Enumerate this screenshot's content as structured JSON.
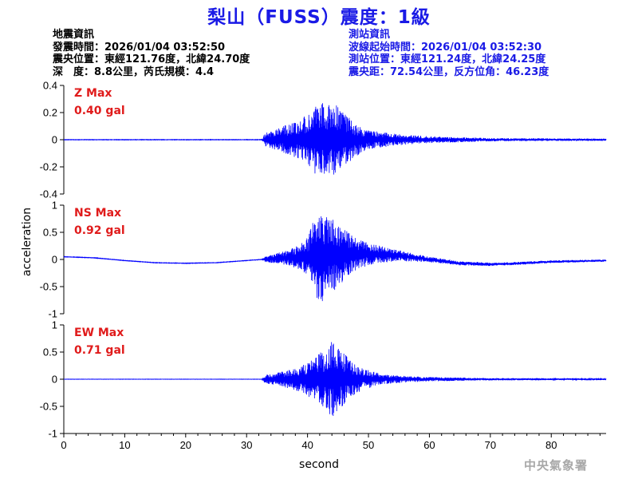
{
  "title": "梨山（FUSS）震度：1級",
  "earthquake_info": {
    "heading": "地震資訊",
    "origin_time": "發震時間：2026/01/04 03:52:50",
    "epicenter": "震央位置：東經121.76度，北緯24.70度",
    "depth_magnitude": "深　度：8.8公里，芮氏規模：4.4"
  },
  "station_info": {
    "heading": "測站資訊",
    "wave_start_time": "波線起始時間：2026/01/04 03:52:30",
    "station_location": "測站位置：東經121.24度，北緯24.25度",
    "distance_azimuth": "震央距：72.54公里，反方位角：46.23度"
  },
  "footer": "中央氣象署",
  "chart_data": {
    "type": "line",
    "xlabel": "second",
    "ylabel": "acceleration",
    "xlim": [
      0,
      89
    ],
    "x_ticks": [
      0,
      10,
      20,
      30,
      40,
      50,
      60,
      70,
      80
    ],
    "series_color": "#0000ff",
    "label_color": "#e01b1b",
    "panels": [
      {
        "component": "Z",
        "label": "Z Max",
        "max_value": "0.40 gal",
        "ylim": [
          -0.4,
          0.4
        ],
        "y_ticks": [
          -0.4,
          -0.2,
          0,
          0.2,
          0.4
        ],
        "y_tick_labels": [
          "-0.4",
          "-0.2",
          "0",
          "0.2",
          "0.4"
        ],
        "envelope": [
          [
            0,
            0.002
          ],
          [
            32.5,
            0.002
          ],
          [
            33,
            0.05
          ],
          [
            35,
            0.08
          ],
          [
            37,
            0.12
          ],
          [
            39,
            0.15
          ],
          [
            40.5,
            0.22
          ],
          [
            42,
            0.28
          ],
          [
            43,
            0.26
          ],
          [
            44.5,
            0.28
          ],
          [
            46,
            0.2
          ],
          [
            48,
            0.12
          ],
          [
            50,
            0.07
          ],
          [
            55,
            0.04
          ],
          [
            60,
            0.025
          ],
          [
            70,
            0.012
          ],
          [
            89,
            0.008
          ]
        ],
        "baseline": [
          [
            0,
            0
          ],
          [
            89,
            0
          ]
        ]
      },
      {
        "component": "NS",
        "label": "NS Max",
        "max_value": "0.92 gal",
        "ylim": [
          -1,
          1
        ],
        "y_ticks": [
          -1,
          -0.5,
          0,
          0.5,
          1
        ],
        "y_tick_labels": [
          "-1",
          "-0.5",
          "0",
          "0.5",
          "1"
        ],
        "envelope": [
          [
            0,
            0.005
          ],
          [
            32.5,
            0.005
          ],
          [
            33,
            0.05
          ],
          [
            36,
            0.12
          ],
          [
            38,
            0.2
          ],
          [
            40,
            0.35
          ],
          [
            41,
            0.7
          ],
          [
            42,
            0.9
          ],
          [
            43,
            0.75
          ],
          [
            45,
            0.6
          ],
          [
            46,
            0.5
          ],
          [
            48,
            0.3
          ],
          [
            50,
            0.2
          ],
          [
            55,
            0.1
          ],
          [
            60,
            0.05
          ],
          [
            70,
            0.03
          ],
          [
            89,
            0.02
          ]
        ],
        "baseline": [
          [
            0,
            0.05
          ],
          [
            5,
            0.03
          ],
          [
            10,
            -0.02
          ],
          [
            15,
            -0.06
          ],
          [
            20,
            -0.07
          ],
          [
            25,
            -0.06
          ],
          [
            30,
            -0.02
          ],
          [
            35,
            0.02
          ],
          [
            40,
            0.05
          ],
          [
            45,
            0.08
          ],
          [
            50,
            0.1
          ],
          [
            55,
            0.07
          ],
          [
            60,
            0.0
          ],
          [
            65,
            -0.07
          ],
          [
            70,
            -0.09
          ],
          [
            75,
            -0.07
          ],
          [
            80,
            -0.04
          ],
          [
            85,
            -0.03
          ],
          [
            89,
            -0.02
          ]
        ]
      },
      {
        "component": "EW",
        "label": "EW Max",
        "max_value": "0.71 gal",
        "ylim": [
          -1,
          1
        ],
        "y_ticks": [
          -1,
          -0.5,
          0,
          0.5,
          1
        ],
        "y_tick_labels": [
          "-1",
          "-0.5",
          "0",
          "0.5",
          "1"
        ],
        "envelope": [
          [
            0,
            0.003
          ],
          [
            32.5,
            0.003
          ],
          [
            33,
            0.08
          ],
          [
            35,
            0.12
          ],
          [
            38,
            0.2
          ],
          [
            40,
            0.3
          ],
          [
            41.5,
            0.45
          ],
          [
            43,
            0.55
          ],
          [
            44,
            0.7
          ],
          [
            45.5,
            0.55
          ],
          [
            47,
            0.35
          ],
          [
            49,
            0.2
          ],
          [
            52,
            0.1
          ],
          [
            56,
            0.06
          ],
          [
            60,
            0.04
          ],
          [
            70,
            0.02
          ],
          [
            89,
            0.015
          ]
        ],
        "baseline": [
          [
            0,
            0
          ],
          [
            89,
            0
          ]
        ]
      }
    ]
  }
}
